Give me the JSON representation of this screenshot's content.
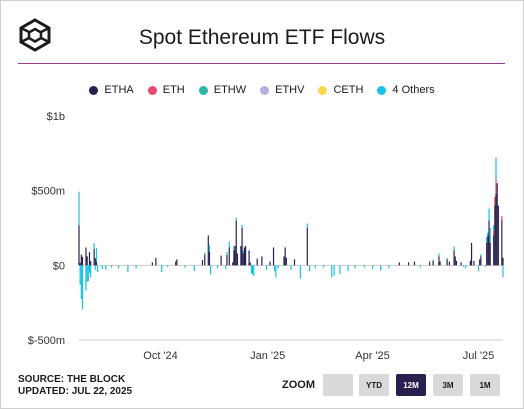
{
  "header": {
    "title": "Spot Ethereum ETF Flows"
  },
  "legend": [
    {
      "label": "ETHA",
      "color": "#2b1f4f"
    },
    {
      "label": "ETH",
      "color": "#ee4870"
    },
    {
      "label": "ETHW",
      "color": "#2db5a8"
    },
    {
      "label": "ETHV",
      "color": "#b6aee0"
    },
    {
      "label": "CETH",
      "color": "#f7d84b"
    },
    {
      "label": "4 Others",
      "color": "#19c2e6"
    }
  ],
  "footer": {
    "source": "SOURCE: THE BLOCK",
    "updated": "UPDATED: JUL 22, 2025"
  },
  "zoom": {
    "label": "ZOOM",
    "buttons": [
      "",
      "YTD",
      "12M",
      "3M",
      "1M"
    ],
    "selected": "12M"
  },
  "chart_data": {
    "type": "bar",
    "stacked": true,
    "y_unit": "USD",
    "ylim": [
      -500,
      1000
    ],
    "y_ticks": [
      {
        "value": 1000,
        "label": "$1b"
      },
      {
        "value": 500,
        "label": "$500m"
      },
      {
        "value": 0,
        "label": "$0"
      },
      {
        "value": -500,
        "label": "$-500m"
      }
    ],
    "x_range": [
      "2024-07-23",
      "2025-07-22"
    ],
    "x_ticks": [
      {
        "date": "2024-10-01",
        "label": "Oct '24"
      },
      {
        "date": "2025-01-01",
        "label": "Jan '25"
      },
      {
        "date": "2025-04-01",
        "label": "Apr '25"
      },
      {
        "date": "2025-07-01",
        "label": "Jul '25"
      }
    ],
    "grid": false,
    "legend_position": "top",
    "series_names": [
      "ETHA",
      "ETH",
      "ETHW",
      "ETHV",
      "CETH",
      "4 Others"
    ],
    "bars": [
      {
        "date": "2024-07-23",
        "values": [
          267,
          0,
          0,
          0,
          0,
          226
        ]
      },
      {
        "date": "2024-07-24",
        "values": [
          17,
          0,
          0,
          0,
          0,
          -130
        ]
      },
      {
        "date": "2024-07-25",
        "values": [
          72,
          0,
          0,
          0,
          0,
          -225
        ]
      },
      {
        "date": "2024-07-26",
        "values": [
          57,
          0,
          0,
          0,
          0,
          -295
        ]
      },
      {
        "date": "2024-07-29",
        "values": [
          119,
          0,
          0,
          0,
          0,
          -170
        ]
      },
      {
        "date": "2024-07-30",
        "values": [
          60,
          0,
          0,
          0,
          0,
          -110
        ]
      },
      {
        "date": "2024-07-31",
        "values": [
          0,
          0,
          0,
          0,
          0,
          -105
        ]
      },
      {
        "date": "2024-08-01",
        "values": [
          89,
          0,
          0,
          0,
          0,
          -50
        ]
      },
      {
        "date": "2024-08-02",
        "values": [
          28,
          0,
          0,
          0,
          0,
          -80
        ]
      },
      {
        "date": "2024-08-05",
        "values": [
          109,
          0,
          0,
          0,
          0,
          40
        ]
      },
      {
        "date": "2024-08-06",
        "values": [
          48,
          0,
          0,
          0,
          0,
          -30
        ]
      },
      {
        "date": "2024-08-07",
        "values": [
          25,
          0,
          0,
          0,
          0,
          90
        ]
      },
      {
        "date": "2024-08-08",
        "values": [
          0,
          0,
          0,
          0,
          0,
          -45
        ]
      },
      {
        "date": "2024-08-12",
        "values": [
          0,
          0,
          0,
          0,
          0,
          -25
        ]
      },
      {
        "date": "2024-08-15",
        "values": [
          0,
          0,
          0,
          0,
          0,
          -30
        ]
      },
      {
        "date": "2024-08-20",
        "values": [
          0,
          0,
          0,
          0,
          0,
          -15
        ]
      },
      {
        "date": "2024-08-26",
        "values": [
          0,
          0,
          0,
          0,
          0,
          -20
        ]
      },
      {
        "date": "2024-09-03",
        "values": [
          0,
          0,
          0,
          0,
          0,
          -45
        ]
      },
      {
        "date": "2024-09-10",
        "values": [
          0,
          0,
          0,
          0,
          0,
          -20
        ]
      },
      {
        "date": "2024-09-24",
        "values": [
          20,
          0,
          0,
          0,
          0,
          0
        ]
      },
      {
        "date": "2024-09-27",
        "values": [
          50,
          0,
          0,
          0,
          0,
          0
        ]
      },
      {
        "date": "2024-10-02",
        "values": [
          0,
          0,
          0,
          0,
          0,
          -45
        ]
      },
      {
        "date": "2024-10-07",
        "values": [
          0,
          0,
          0,
          0,
          0,
          -10
        ]
      },
      {
        "date": "2024-10-14",
        "values": [
          25,
          0,
          0,
          0,
          0,
          0
        ]
      },
      {
        "date": "2024-10-15",
        "values": [
          40,
          0,
          0,
          0,
          0,
          0
        ]
      },
      {
        "date": "2024-10-22",
        "values": [
          0,
          0,
          0,
          0,
          0,
          -15
        ]
      },
      {
        "date": "2024-10-30",
        "values": [
          0,
          0,
          0,
          0,
          0,
          -40
        ]
      },
      {
        "date": "2024-11-06",
        "values": [
          35,
          0,
          0,
          0,
          0,
          0
        ]
      },
      {
        "date": "2024-11-08",
        "values": [
          70,
          0,
          0,
          0,
          0,
          15
        ]
      },
      {
        "date": "2024-11-11",
        "values": [
          200,
          0,
          0,
          0,
          0,
          0
        ]
      },
      {
        "date": "2024-11-12",
        "values": [
          90,
          0,
          0,
          0,
          0,
          45
        ]
      },
      {
        "date": "2024-11-13",
        "values": [
          0,
          0,
          0,
          0,
          0,
          -60
        ]
      },
      {
        "date": "2024-11-19",
        "values": [
          0,
          0,
          0,
          0,
          0,
          -20
        ]
      },
      {
        "date": "2024-11-22",
        "values": [
          65,
          0,
          0,
          0,
          0,
          0
        ]
      },
      {
        "date": "2024-11-26",
        "values": [
          0,
          0,
          0,
          0,
          0,
          -25
        ]
      },
      {
        "date": "2024-11-27",
        "values": [
          70,
          0,
          0,
          0,
          0,
          20
        ]
      },
      {
        "date": "2024-11-29",
        "values": [
          120,
          0,
          0,
          0,
          0,
          40
        ]
      },
      {
        "date": "2024-12-02",
        "values": [
          20,
          0,
          0,
          0,
          0,
          0
        ]
      },
      {
        "date": "2024-12-03",
        "values": [
          100,
          0,
          0,
          0,
          0,
          30
        ]
      },
      {
        "date": "2024-12-04",
        "values": [
          130,
          0,
          0,
          0,
          0,
          0
        ]
      },
      {
        "date": "2024-12-05",
        "values": [
          300,
          0,
          0,
          0,
          0,
          20
        ]
      },
      {
        "date": "2024-12-06",
        "values": [
          80,
          0,
          0,
          0,
          0,
          0
        ]
      },
      {
        "date": "2024-12-09",
        "values": [
          130,
          0,
          0,
          0,
          0,
          0
        ]
      },
      {
        "date": "2024-12-10",
        "values": [
          250,
          0,
          0,
          0,
          0,
          20
        ]
      },
      {
        "date": "2024-12-11",
        "values": [
          80,
          0,
          0,
          0,
          0,
          20
        ]
      },
      {
        "date": "2024-12-12",
        "values": [
          120,
          0,
          0,
          0,
          0,
          0
        ]
      },
      {
        "date": "2024-12-13",
        "values": [
          130,
          0,
          0,
          0,
          0,
          0
        ]
      },
      {
        "date": "2024-12-16",
        "values": [
          100,
          0,
          0,
          0,
          0,
          0
        ]
      },
      {
        "date": "2024-12-17",
        "values": [
          20,
          0,
          0,
          0,
          0,
          0
        ]
      },
      {
        "date": "2024-12-18",
        "values": [
          0,
          0,
          0,
          0,
          0,
          -55
        ]
      },
      {
        "date": "2024-12-19",
        "values": [
          0,
          0,
          0,
          0,
          0,
          -60
        ]
      },
      {
        "date": "2024-12-20",
        "values": [
          0,
          0,
          0,
          0,
          0,
          -70
        ]
      },
      {
        "date": "2024-12-23",
        "values": [
          45,
          0,
          0,
          0,
          0,
          0
        ]
      },
      {
        "date": "2024-12-27",
        "values": [
          60,
          0,
          0,
          0,
          0,
          0
        ]
      },
      {
        "date": "2024-12-31",
        "values": [
          0,
          0,
          0,
          0,
          0,
          -30
        ]
      },
      {
        "date": "2025-01-03",
        "values": [
          25,
          0,
          0,
          0,
          0,
          0
        ]
      },
      {
        "date": "2025-01-06",
        "values": [
          120,
          0,
          0,
          0,
          0,
          0
        ]
      },
      {
        "date": "2025-01-07",
        "values": [
          0,
          0,
          0,
          0,
          0,
          -40
        ]
      },
      {
        "date": "2025-01-08",
        "values": [
          0,
          0,
          0,
          0,
          0,
          -80
        ]
      },
      {
        "date": "2025-01-10",
        "values": [
          0,
          0,
          0,
          0,
          0,
          -20
        ]
      },
      {
        "date": "2025-01-15",
        "values": [
          60,
          0,
          0,
          0,
          0,
          0
        ]
      },
      {
        "date": "2025-01-16",
        "values": [
          120,
          0,
          0,
          0,
          0,
          0
        ]
      },
      {
        "date": "2025-01-17",
        "values": [
          50,
          0,
          0,
          0,
          0,
          0
        ]
      },
      {
        "date": "2025-01-21",
        "values": [
          0,
          0,
          0,
          0,
          0,
          -30
        ]
      },
      {
        "date": "2025-01-24",
        "values": [
          40,
          0,
          0,
          0,
          0,
          0
        ]
      },
      {
        "date": "2025-01-29",
        "values": [
          0,
          0,
          0,
          0,
          0,
          -90
        ]
      },
      {
        "date": "2025-02-04",
        "values": [
          250,
          0,
          0,
          0,
          0,
          30
        ]
      },
      {
        "date": "2025-02-06",
        "values": [
          0,
          0,
          0,
          0,
          0,
          -40
        ]
      },
      {
        "date": "2025-02-11",
        "values": [
          0,
          0,
          0,
          0,
          0,
          -20
        ]
      },
      {
        "date": "2025-02-18",
        "values": [
          0,
          0,
          0,
          0,
          0,
          -15
        ]
      },
      {
        "date": "2025-02-25",
        "values": [
          0,
          0,
          0,
          0,
          0,
          -80
        ]
      },
      {
        "date": "2025-02-27",
        "values": [
          0,
          0,
          0,
          0,
          0,
          -70
        ]
      },
      {
        "date": "2025-03-04",
        "values": [
          0,
          0,
          0,
          0,
          0,
          -60
        ]
      },
      {
        "date": "2025-03-11",
        "values": [
          0,
          0,
          0,
          0,
          0,
          -40
        ]
      },
      {
        "date": "2025-03-17",
        "values": [
          0,
          0,
          0,
          0,
          0,
          -20
        ]
      },
      {
        "date": "2025-03-25",
        "values": [
          0,
          0,
          0,
          0,
          0,
          -15
        ]
      },
      {
        "date": "2025-04-01",
        "values": [
          0,
          0,
          0,
          0,
          0,
          -25
        ]
      },
      {
        "date": "2025-04-08",
        "values": [
          0,
          0,
          0,
          0,
          0,
          -35
        ]
      },
      {
        "date": "2025-04-15",
        "values": [
          0,
          0,
          0,
          0,
          0,
          -20
        ]
      },
      {
        "date": "2025-04-24",
        "values": [
          20,
          0,
          0,
          0,
          0,
          0
        ]
      },
      {
        "date": "2025-05-02",
        "values": [
          20,
          0,
          0,
          0,
          0,
          0
        ]
      },
      {
        "date": "2025-05-07",
        "values": [
          25,
          0,
          0,
          0,
          0,
          0
        ]
      },
      {
        "date": "2025-05-12",
        "values": [
          0,
          0,
          0,
          0,
          0,
          -15
        ]
      },
      {
        "date": "2025-05-20",
        "values": [
          20,
          0,
          0,
          0,
          0,
          10
        ]
      },
      {
        "date": "2025-05-23",
        "values": [
          30,
          0,
          0,
          0,
          0,
          10
        ]
      },
      {
        "date": "2025-05-28",
        "values": [
          60,
          0,
          0,
          0,
          0,
          20
        ]
      },
      {
        "date": "2025-05-29",
        "values": [
          25,
          0,
          0,
          0,
          0,
          0
        ]
      },
      {
        "date": "2025-06-04",
        "values": [
          40,
          0,
          0,
          0,
          0,
          10
        ]
      },
      {
        "date": "2025-06-06",
        "values": [
          25,
          0,
          0,
          0,
          0,
          0
        ]
      },
      {
        "date": "2025-06-10",
        "values": [
          100,
          0,
          0,
          0,
          0,
          25
        ]
      },
      {
        "date": "2025-06-11",
        "values": [
          60,
          0,
          0,
          0,
          0,
          0
        ]
      },
      {
        "date": "2025-06-12",
        "values": [
          30,
          0,
          0,
          0,
          0,
          0
        ]
      },
      {
        "date": "2025-06-16",
        "values": [
          20,
          0,
          0,
          0,
          0,
          0
        ]
      },
      {
        "date": "2025-06-18",
        "values": [
          0,
          0,
          0,
          0,
          0,
          -10
        ]
      },
      {
        "date": "2025-06-20",
        "values": [
          0,
          0,
          0,
          0,
          0,
          -20
        ]
      },
      {
        "date": "2025-06-24",
        "values": [
          30,
          0,
          0,
          0,
          0,
          0
        ]
      },
      {
        "date": "2025-06-25",
        "values": [
          150,
          0,
          0,
          0,
          0,
          0
        ]
      },
      {
        "date": "2025-06-27",
        "values": [
          30,
          0,
          0,
          0,
          0,
          0
        ]
      },
      {
        "date": "2025-07-01",
        "values": [
          0,
          0,
          0,
          0,
          0,
          -40
        ]
      },
      {
        "date": "2025-07-02",
        "values": [
          40,
          0,
          0,
          0,
          0,
          0
        ]
      },
      {
        "date": "2025-07-03",
        "values": [
          60,
          0,
          0,
          0,
          0,
          15
        ]
      },
      {
        "date": "2025-07-07",
        "values": [
          0,
          0,
          0,
          0,
          0,
          -10
        ]
      },
      {
        "date": "2025-07-08",
        "values": [
          150,
          0,
          0,
          0,
          0,
          40
        ]
      },
      {
        "date": "2025-07-09",
        "values": [
          200,
          0,
          0,
          0,
          0,
          20
        ]
      },
      {
        "date": "2025-07-10",
        "values": [
          300,
          0,
          0,
          0,
          0,
          80
        ]
      },
      {
        "date": "2025-07-11",
        "values": [
          150,
          0,
          0,
          0,
          0,
          100
        ]
      },
      {
        "date": "2025-07-14",
        "values": [
          200,
          30,
          0,
          0,
          0,
          40
        ]
      },
      {
        "date": "2025-07-15",
        "values": [
          400,
          60,
          0,
          0,
          0,
          0
        ]
      },
      {
        "date": "2025-07-16",
        "values": [
          480,
          100,
          0,
          0,
          0,
          140
        ]
      },
      {
        "date": "2025-07-17",
        "values": [
          550,
          0,
          0,
          0,
          0,
          0
        ]
      },
      {
        "date": "2025-07-18",
        "values": [
          400,
          0,
          0,
          0,
          0,
          0
        ]
      },
      {
        "date": "2025-07-21",
        "values": [
          300,
          30,
          0,
          0,
          0,
          0
        ]
      },
      {
        "date": "2025-07-22",
        "values": [
          50,
          0,
          0,
          0,
          0,
          -80
        ]
      }
    ]
  }
}
